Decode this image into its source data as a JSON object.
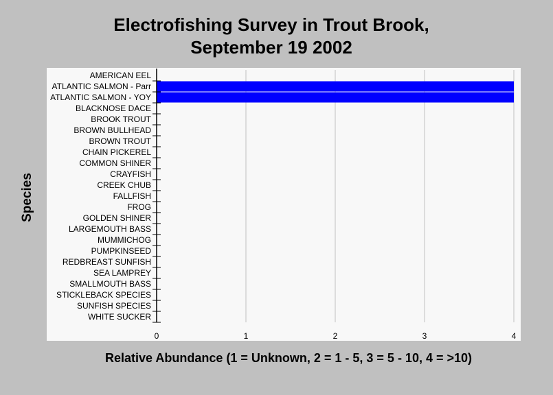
{
  "chart_data": {
    "type": "bar",
    "orientation": "horizontal",
    "title": "Electrofishing Survey in Trout Brook,\nSeptember 19 2002",
    "xlabel": "Relative Abundance (1 = Unknown, 2 = 1 - 5, 3 = 5 - 10, 4 = >10)",
    "ylabel": "Species",
    "categories": [
      "AMERICAN EEL",
      "ATLANTIC SALMON  - Parr",
      "ATLANTIC SALMON - YOY",
      "BLACKNOSE DACE",
      "BROOK TROUT",
      "BROWN BULLHEAD",
      "BROWN TROUT",
      "CHAIN PICKEREL",
      "COMMON SHINER",
      "CRAYFISH",
      "CREEK CHUB",
      "FALLFISH",
      "FROG",
      "GOLDEN SHINER",
      "LARGEMOUTH BASS",
      "MUMMICHOG",
      "PUMPKINSEED",
      "REDBREAST SUNFISH",
      "SEA LAMPREY",
      "SMALLMOUTH BASS",
      "STICKLEBACK SPECIES",
      "SUNFISH SPECIES",
      "WHITE SUCKER"
    ],
    "values": [
      0,
      4,
      4,
      0,
      0,
      0,
      0,
      0,
      0,
      0,
      0,
      0,
      0,
      0,
      0,
      0,
      0,
      0,
      0,
      0,
      0,
      0,
      0
    ],
    "xlim": [
      0,
      4
    ],
    "xticks": [
      "0",
      "1",
      "2",
      "3",
      "4"
    ],
    "grid": "vertical",
    "legend": "none",
    "colors": {
      "bar": "#0000ff",
      "plot_background": "#f8f8f8",
      "page_background": "#c0c0c0",
      "gridline": "#c0c0c0"
    }
  }
}
